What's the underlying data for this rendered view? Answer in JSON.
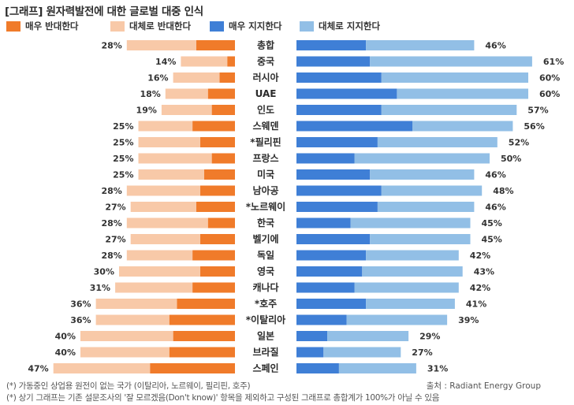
{
  "title": "[그래프] 원자력발전에 대한 글로벌 대중 인식",
  "legend": [
    {
      "label": "매우 반대한다",
      "color": "#F07B2A"
    },
    {
      "label": "대체로 반대한다",
      "color": "#F8C9A8"
    },
    {
      "label": "매우 지지한다",
      "color": "#3F7FD6"
    },
    {
      "label": "대체로 지지한다",
      "color": "#92BFE6"
    }
  ],
  "chart_data": {
    "type": "bar",
    "orientation": "horizontal-diverging",
    "categories": [
      "총합",
      "중국",
      "러시아",
      "UAE",
      "인도",
      "스웨덴",
      "*필리핀",
      "프랑스",
      "미국",
      "남아공",
      "*노르웨이",
      "한국",
      "벨기에",
      "독일",
      "영국",
      "캐나다",
      "*호주",
      "*이탈리아",
      "일본",
      "브라질",
      "스페인"
    ],
    "oppose_total_labels": [
      "28%",
      "14%",
      "16%",
      "18%",
      "19%",
      "25%",
      "25%",
      "25%",
      "25%",
      "28%",
      "27%",
      "28%",
      "27%",
      "28%",
      "30%",
      "31%",
      "36%",
      "36%",
      "40%",
      "40%",
      "47%"
    ],
    "support_total_labels": [
      "46%",
      "61%",
      "60%",
      "60%",
      "57%",
      "56%",
      "52%",
      "50%",
      "46%",
      "48%",
      "46%",
      "45%",
      "45%",
      "42%",
      "43%",
      "42%",
      "41%",
      "39%",
      "29%",
      "27%",
      "31%"
    ],
    "series": [
      {
        "name": "매우 반대한다",
        "values": [
          10,
          2,
          4,
          7,
          6,
          11,
          9,
          6,
          8,
          9,
          10,
          7,
          9,
          11,
          9,
          11,
          15,
          17,
          16,
          17,
          22
        ]
      },
      {
        "name": "대체로 반대한다",
        "values": [
          18,
          12,
          12,
          11,
          13,
          14,
          16,
          19,
          17,
          19,
          17,
          21,
          18,
          17,
          21,
          20,
          21,
          19,
          24,
          23,
          25
        ]
      },
      {
        "name": "매우 지지한다",
        "values": [
          18,
          19,
          22,
          26,
          22,
          30,
          21,
          15,
          19,
          22,
          21,
          14,
          19,
          18,
          17,
          15,
          18,
          13,
          8,
          7,
          11
        ]
      },
      {
        "name": "대체로 지지한다",
        "values": [
          28,
          42,
          38,
          34,
          35,
          26,
          31,
          35,
          27,
          26,
          25,
          31,
          26,
          24,
          26,
          27,
          23,
          26,
          21,
          20,
          20
        ]
      }
    ]
  },
  "footnotes": [
    "(*) 가동중인 상업용 원전이  없는 국가 (이탈리아, 노르웨이, 필리핀, 호주)",
    "(*) 상기 그래프는 기존 설문조사의 '잘 모르겠음(Don't know)' 항목을 제외하고 구성된 그래프로 총합계가 100%가 아닐 수 있음"
  ],
  "source": "출처 : Radiant Energy Group"
}
